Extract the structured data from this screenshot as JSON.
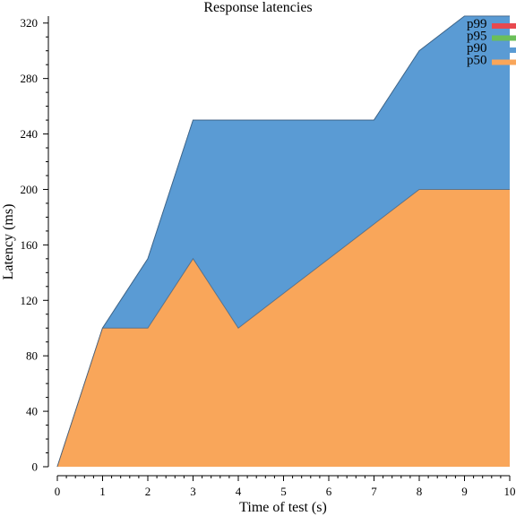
{
  "chart_data": {
    "type": "area",
    "title": "Response latencies",
    "xlabel": "Time of test (s)",
    "ylabel": "Latency (ms)",
    "xlim": [
      0,
      10
    ],
    "ylim": [
      0,
      325
    ],
    "x_ticks": [
      0,
      1,
      2,
      3,
      4,
      5,
      6,
      7,
      8,
      9,
      10
    ],
    "y_ticks": [
      0,
      40,
      80,
      120,
      160,
      200,
      240,
      280,
      320
    ],
    "grid": false,
    "legend_position": "top-right",
    "x": [
      0,
      1,
      2,
      3,
      4,
      5,
      6,
      7,
      8,
      9,
      10
    ],
    "series": [
      {
        "name": "p99",
        "color": "#e8494f",
        "values": [
          0,
          100,
          150,
          250,
          250,
          250,
          250,
          250,
          300,
          325,
          325
        ]
      },
      {
        "name": "p95",
        "color": "#6bbf59",
        "values": [
          0,
          100,
          150,
          250,
          250,
          250,
          250,
          250,
          300,
          325,
          325
        ]
      },
      {
        "name": "p90",
        "color": "#5a9bd4",
        "values": [
          0,
          100,
          150,
          250,
          250,
          250,
          250,
          250,
          300,
          325,
          325
        ]
      },
      {
        "name": "p50",
        "color": "#f9a65a",
        "values": [
          0,
          100,
          100,
          150,
          100,
          125,
          150,
          175,
          200,
          200,
          200
        ]
      }
    ]
  }
}
